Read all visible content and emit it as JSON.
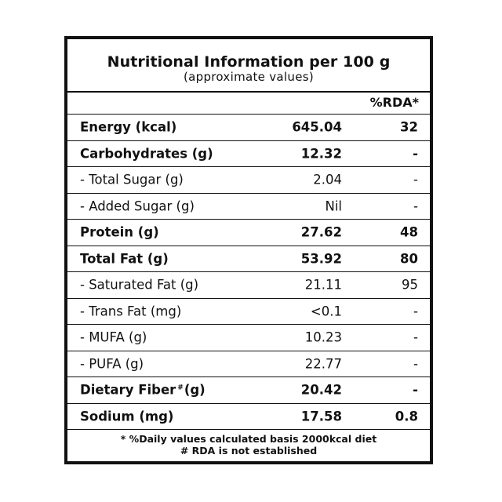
{
  "title": "Nutritional Information per 100 g",
  "subtitle": "(approximate values)",
  "rda_header": "%RDA*",
  "rows": [
    {
      "name": "Energy (kcal)",
      "value": "645.04",
      "rda": "32"
    },
    {
      "name": "Carbohydrates (g)",
      "value": "12.32",
      "rda": "-"
    },
    {
      "name": "- Total Sugar (g)",
      "value": "2.04",
      "rda": "-"
    },
    {
      "name": "- Added Sugar (g)",
      "value": "Nil",
      "rda": "-"
    },
    {
      "name": "Protein (g)",
      "value": "27.62",
      "rda": "48"
    },
    {
      "name": "Total Fat (g)",
      "value": "53.92",
      "rda": "80"
    },
    {
      "name": "- Saturated Fat (g)",
      "value": "21.11",
      "rda": "95"
    },
    {
      "name": "- Trans Fat (mg)",
      "value": "<0.1",
      "rda": "-"
    },
    {
      "name": "- MUFA (g)",
      "value": "10.23",
      "rda": "-"
    },
    {
      "name": "- PUFA (g)",
      "value": "22.77",
      "rda": "-"
    },
    {
      "name_main": "Dietary Fiber",
      "name_mark": "#",
      "name_unit": "(g)",
      "value": "20.42",
      "rda": "-"
    },
    {
      "name": "Sodium (mg)",
      "value": "17.58",
      "rda": "0.8"
    }
  ],
  "footer": {
    "line1": "* %Daily values calculated basis 2000kcal diet",
    "line2": "# RDA is not established"
  }
}
